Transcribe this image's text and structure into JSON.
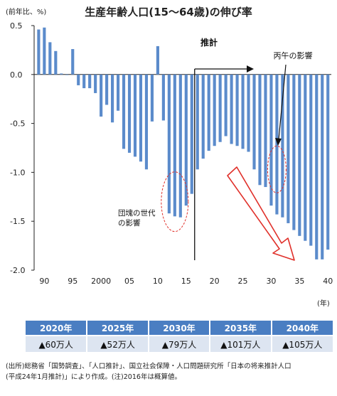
{
  "title": "生産年齢人口(15〜64歳)の伸び率",
  "unit_label": "(前年比、%)",
  "year_unit": "(年)",
  "chart_data": {
    "type": "bar",
    "x": [
      1989,
      1990,
      1991,
      1992,
      1993,
      1994,
      1995,
      1996,
      1997,
      1998,
      1999,
      2000,
      2001,
      2002,
      2003,
      2004,
      2005,
      2006,
      2007,
      2008,
      2009,
      2010,
      2011,
      2012,
      2013,
      2014,
      2015,
      2016,
      2017,
      2018,
      2019,
      2020,
      2021,
      2022,
      2023,
      2024,
      2025,
      2026,
      2027,
      2028,
      2029,
      2030,
      2031,
      2032,
      2033,
      2034,
      2035,
      2036,
      2037,
      2038,
      2039,
      2040
    ],
    "values": [
      0.46,
      0.48,
      0.33,
      0.24,
      0.01,
      0.0,
      0.26,
      -0.11,
      -0.14,
      -0.14,
      -0.19,
      -0.43,
      -0.31,
      -0.49,
      -0.37,
      -0.76,
      -0.8,
      -0.84,
      -0.89,
      -0.97,
      -0.48,
      0.29,
      -0.47,
      -1.42,
      -1.45,
      -1.46,
      -1.34,
      -1.22,
      -0.97,
      -0.86,
      -0.78,
      -0.73,
      -0.69,
      -0.63,
      -0.71,
      -0.73,
      -0.76,
      -0.79,
      -0.97,
      -1.13,
      -1.15,
      -1.34,
      -1.43,
      -1.46,
      -1.52,
      -1.59,
      -1.65,
      -1.7,
      -1.75,
      -1.89,
      -1.89,
      -1.79
    ],
    "xticks": [
      {
        "v": 1990,
        "label": "90"
      },
      {
        "v": 1995,
        "label": "95"
      },
      {
        "v": 2000,
        "label": "2000"
      },
      {
        "v": 2005,
        "label": "05"
      },
      {
        "v": 2010,
        "label": "10"
      },
      {
        "v": 2015,
        "label": "15"
      },
      {
        "v": 2020,
        "label": "20"
      },
      {
        "v": 2025,
        "label": "25"
      },
      {
        "v": 2030,
        "label": "30"
      },
      {
        "v": 2035,
        "label": "35"
      },
      {
        "v": 2040,
        "label": "40"
      }
    ],
    "yticks": [
      {
        "v": 0.5,
        "label": "0.5"
      },
      {
        "v": 0.0,
        "label": "0.0"
      },
      {
        "v": -0.5,
        "label": "-0.5"
      },
      {
        "v": -1.0,
        "label": "-1.0"
      },
      {
        "v": -1.5,
        "label": "-1.5"
      },
      {
        "v": -2.0,
        "label": "-2.0"
      }
    ],
    "ylim": [
      -2.0,
      0.5
    ],
    "xlim": [
      1988.2,
      2040.6
    ],
    "forecast_divider": 2016.5,
    "annotations": {
      "forecast": "推計",
      "hinoeuma": "丙午の影響",
      "dankai_line1": "団塊の世代",
      "dankai_line2": "の影響"
    },
    "colors": {
      "bar": "#5b8bcb",
      "axis": "#222222",
      "highlight": "#e0302a"
    }
  },
  "summary": {
    "years": [
      "2020年",
      "2025年",
      "2030年",
      "2035年",
      "2040年"
    ],
    "values": [
      "▲60万人",
      "▲52万人",
      "▲79万人",
      "▲101万人",
      "▲105万人"
    ]
  },
  "note": {
    "line1": "(出所)総務省「国勢調査」、「人口推計」、国立社会保障・人口問題研究所「日本の将来推計人口",
    "line2": "(平成24年1月推計)」により作成。(注)2016年は概算値。"
  }
}
